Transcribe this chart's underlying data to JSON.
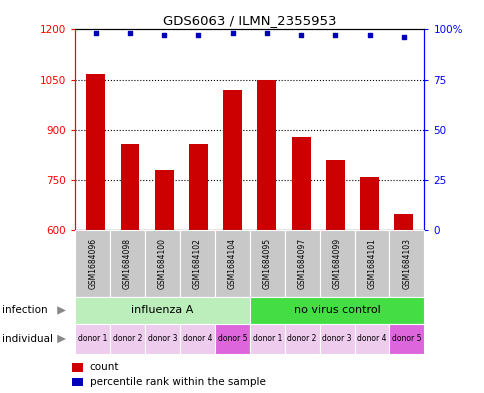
{
  "title": "GDS6063 / ILMN_2355953",
  "samples": [
    "GSM1684096",
    "GSM1684098",
    "GSM1684100",
    "GSM1684102",
    "GSM1684104",
    "GSM1684095",
    "GSM1684097",
    "GSM1684099",
    "GSM1684101",
    "GSM1684103"
  ],
  "counts": [
    1068,
    858,
    780,
    858,
    1020,
    1048,
    878,
    808,
    758,
    648
  ],
  "percentile_ranks": [
    98,
    98,
    97,
    97,
    98,
    98,
    97,
    97,
    97,
    96
  ],
  "infection_groups": [
    {
      "label": "influenza A",
      "start": 0,
      "end": 5,
      "color": "#BBEEBB"
    },
    {
      "label": "no virus control",
      "start": 5,
      "end": 10,
      "color": "#44DD44"
    }
  ],
  "individual_labels": [
    "donor 1",
    "donor 2",
    "donor 3",
    "donor 4",
    "donor 5",
    "donor 1",
    "donor 2",
    "donor 3",
    "donor 4",
    "donor 5"
  ],
  "individual_colors": [
    "#EECCEE",
    "#EECCEE",
    "#EECCEE",
    "#EECCEE",
    "#DD66DD",
    "#EECCEE",
    "#EECCEE",
    "#EECCEE",
    "#EECCEE",
    "#DD66DD"
  ],
  "bar_color": "#CC0000",
  "dot_color": "#0000BB",
  "ylim_left": [
    600,
    1200
  ],
  "ylim_right": [
    0,
    100
  ],
  "yticks_left": [
    600,
    750,
    900,
    1050,
    1200
  ],
  "yticks_right": [
    0,
    25,
    50,
    75,
    100
  ],
  "ytick_labels_right": [
    "0",
    "25",
    "50",
    "75",
    "100%"
  ],
  "background_color": "#ffffff",
  "bar_width": 0.55,
  "infection_row_label": "infection",
  "individual_row_label": "individual",
  "gray_color": "#C8C8C8",
  "arrow_color": "#888888"
}
